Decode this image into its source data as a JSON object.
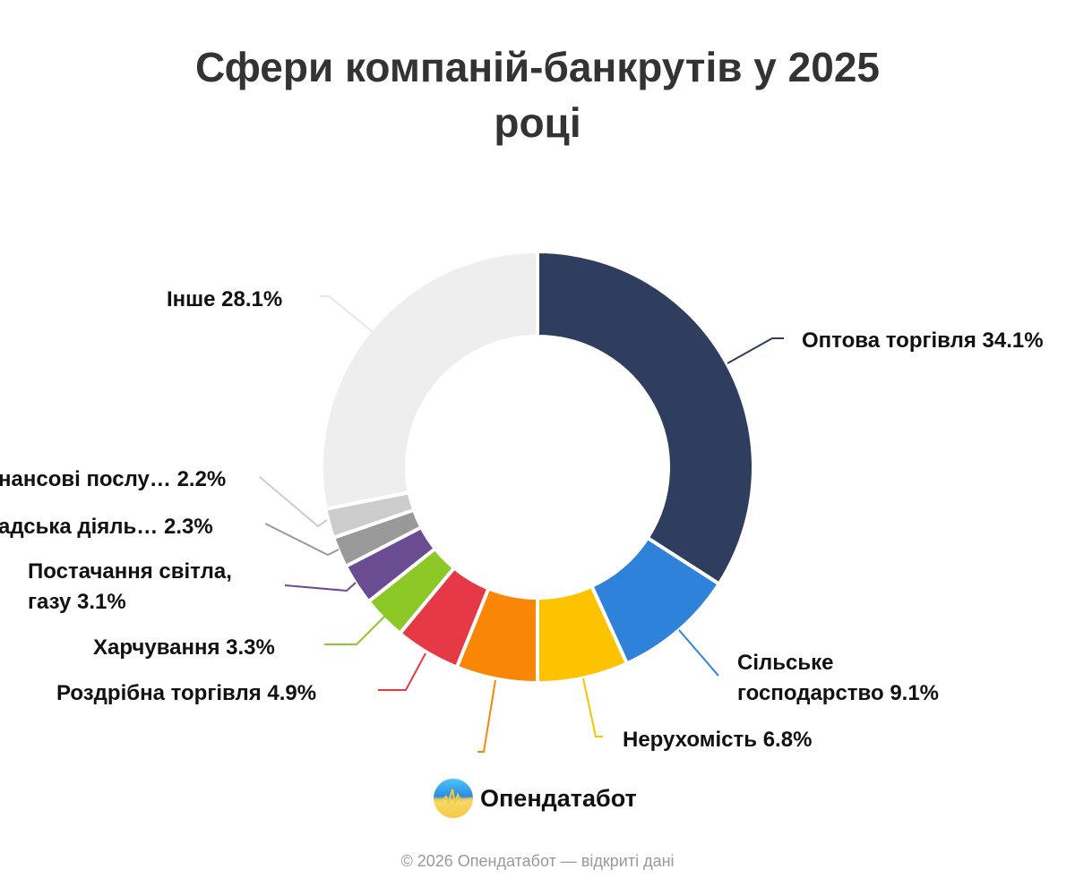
{
  "title_lines": [
    "Сфери компаній-банкрутів у 2025",
    "році"
  ],
  "labels": {
    "wholesale": "Оптова торгівля 34.1%",
    "agriculture_1": "Сільське",
    "agriculture_2": "господарство 9.1%",
    "real_estate": "Нерухомість 6.8%",
    "retail": "Роздрібна торгівля 4.9%",
    "food": "Харчування 3.3%",
    "utilities_1": "Постачання світла,",
    "utilities_2": "газу 3.1%",
    "public": "адська діяль… 2.3%",
    "finance": "нансові послу… 2.2%",
    "other": "Інше 28.1%"
  },
  "logo": {
    "name": "Опендатабот"
  },
  "footer": "© 2026 Опендатабот — відкриті дані",
  "chart_data": {
    "type": "pie",
    "variant": "donut",
    "title": "Сфери компаній-банкрутів у 2025 році",
    "categories": [
      "Оптова торгівля",
      "Сільське господарство",
      "Нерухомість",
      "(unlabeled orange)",
      "Роздрібна торгівля",
      "Харчування",
      "Постачання світла, газу",
      "…адська діяльність",
      "…нансові послуги",
      "Інше"
    ],
    "values": [
      34.1,
      9.1,
      6.8,
      6.1,
      4.9,
      3.3,
      3.1,
      2.3,
      2.2,
      28.1
    ],
    "colors": [
      "#2f3e5e",
      "#2e82d9",
      "#fdc300",
      "#f98607",
      "#e63946",
      "#8cc926",
      "#6a4c93",
      "#999999",
      "#cccccc",
      "#eeeeee"
    ],
    "unit": "%",
    "legend": "none (callout labels)"
  }
}
